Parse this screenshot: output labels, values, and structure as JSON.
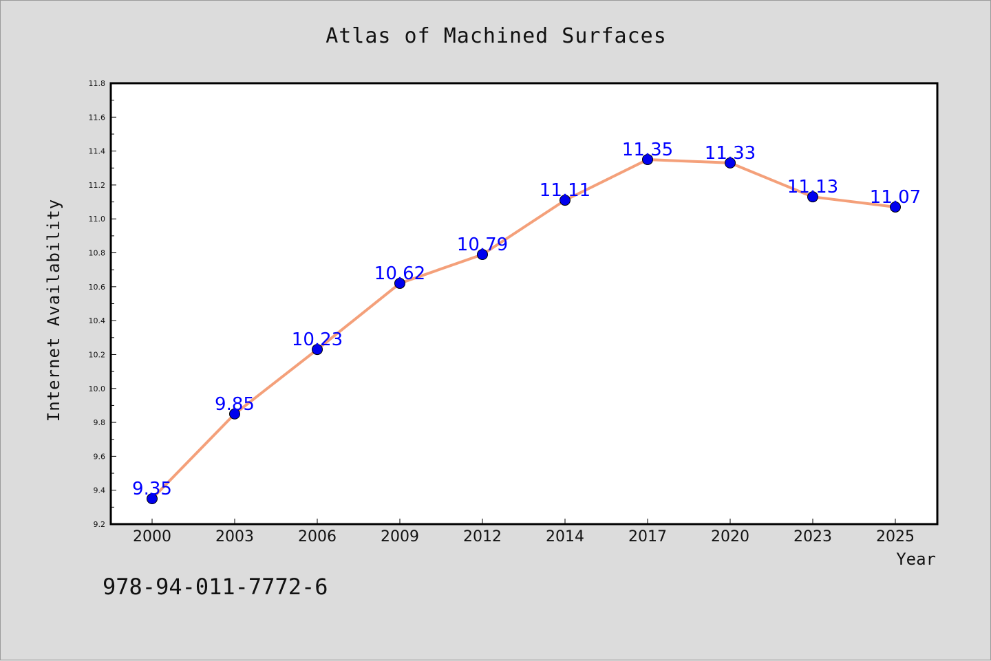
{
  "chart_data": {
    "type": "line",
    "title": "Atlas of Machined Surfaces",
    "xlabel": "Year",
    "ylabel": "Internet Availability",
    "categories": [
      "2000",
      "2003",
      "2006",
      "2009",
      "2012",
      "2014",
      "2017",
      "2020",
      "2023",
      "2025"
    ],
    "series": [
      {
        "values": [
          9.35,
          9.85,
          10.23,
          10.62,
          10.79,
          11.11,
          11.35,
          11.33,
          11.13,
          11.07
        ],
        "labels": [
          "9.35",
          "9.85",
          "10.23",
          "10.62",
          "10.79",
          "11.11",
          "11.35",
          "11.33",
          "11.13",
          "11.07"
        ],
        "line_color": "#f4a07a",
        "marker_color": "#0000ee",
        "label_color": "#0000ff"
      }
    ],
    "ylim": [
      9.2,
      11.8
    ],
    "yticks": [
      "9.2",
      "9.4",
      "9.6",
      "9.8",
      "10.0",
      "10.2",
      "10.4",
      "10.6",
      "10.8",
      "11.0",
      "11.2",
      "11.4",
      "11.6",
      "11.8"
    ],
    "grid": false,
    "legend": "none",
    "background": "#dcdcdc",
    "plot_background": "#ffffff"
  },
  "annotation": {
    "isbn": "978-94-011-7772-6"
  }
}
